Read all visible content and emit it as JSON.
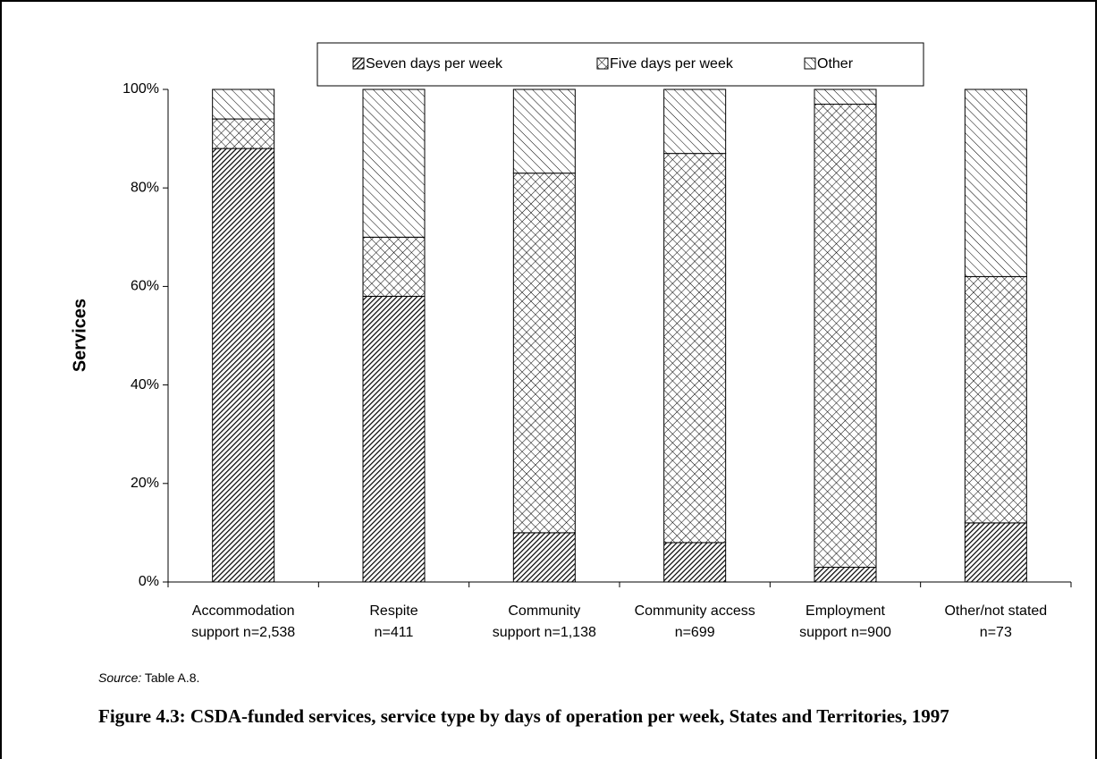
{
  "chart_data": {
    "type": "stacked_bar",
    "y_label": "Services",
    "categories": [
      [
        "Accommodation",
        "support n=2,538"
      ],
      [
        "Respite",
        "n=411"
      ],
      [
        "Community",
        "support n=1,138"
      ],
      [
        "Community access",
        "n=699"
      ],
      [
        "Employment",
        "support n=900"
      ],
      [
        "Other/not stated",
        "n=73"
      ]
    ],
    "series": [
      {
        "name": "Seven days per week",
        "color": "#000000",
        "pattern": "dense-diagonal",
        "values": [
          88,
          58,
          10,
          8,
          3,
          12
        ]
      },
      {
        "name": "Five days per week",
        "color": "#000000",
        "pattern": "crosshatch",
        "values": [
          6,
          12,
          73,
          79,
          94,
          50
        ]
      },
      {
        "name": "Other",
        "color": "#000000",
        "pattern": "back-diagonal",
        "values": [
          6,
          30,
          17,
          13,
          3,
          38
        ]
      }
    ],
    "ylim": [
      0,
      100
    ],
    "yticks": [
      {
        "value": 0,
        "label": "0%"
      },
      {
        "value": 20,
        "label": "20%"
      },
      {
        "value": 40,
        "label": "40%"
      },
      {
        "value": 60,
        "label": "60%"
      },
      {
        "value": 80,
        "label": "80%"
      },
      {
        "value": 100,
        "label": "100%"
      }
    ],
    "legend": "top",
    "grid": false
  },
  "source_label": "Source:",
  "source_text": "Table A.8.",
  "caption": "Figure 4.3: CSDA-funded services, service type by days of operation per week, States and Territories, 1997"
}
